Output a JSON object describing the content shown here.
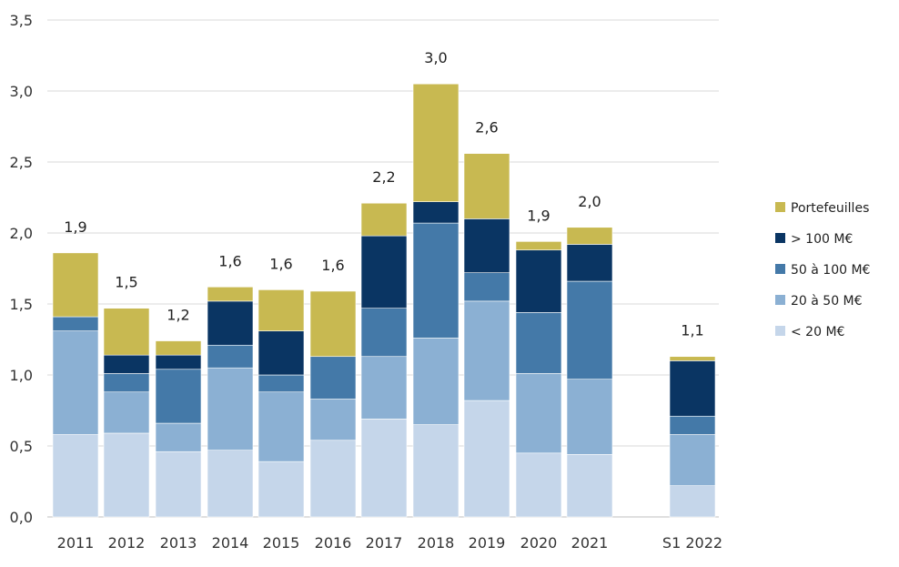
{
  "chart_data": {
    "type": "bar",
    "stacked": true,
    "categories": [
      "2011",
      "2012",
      "2013",
      "2014",
      "2015",
      "2016",
      "2017",
      "2018",
      "2019",
      "2020",
      "2021",
      "S1 2022"
    ],
    "ylim": [
      0,
      3.5
    ],
    "yticks": [
      "0,0",
      "0,5",
      "1,0",
      "1,5",
      "2,0",
      "2,5",
      "3,0",
      "3,5"
    ],
    "ytick_values": [
      0,
      0.5,
      1.0,
      1.5,
      2.0,
      2.5,
      3.0,
      3.5
    ],
    "grid": true,
    "legend_position": "right",
    "xlabel": "",
    "ylabel": "",
    "totals": [
      "1,9",
      "1,5",
      "1,2",
      "1,6",
      "1,6",
      "1,6",
      "2,2",
      "3,0",
      "2,6",
      "1,9",
      "2,0",
      "1,1"
    ],
    "series": [
      {
        "name": "< 20 M€",
        "color": "#c5d6ea",
        "values": [
          0.58,
          0.59,
          0.46,
          0.47,
          0.39,
          0.54,
          0.69,
          0.65,
          0.82,
          0.45,
          0.44,
          0.22
        ]
      },
      {
        "name": "20 à 50 M€",
        "color": "#8bb0d3",
        "values": [
          0.73,
          0.29,
          0.2,
          0.58,
          0.49,
          0.29,
          0.44,
          0.61,
          0.7,
          0.56,
          0.53,
          0.36
        ]
      },
      {
        "name": "50 à 100 M€",
        "color": "#4479a8",
        "values": [
          0.1,
          0.13,
          0.38,
          0.16,
          0.12,
          0.3,
          0.34,
          0.81,
          0.2,
          0.43,
          0.69,
          0.13
        ]
      },
      {
        "name": "> 100 M€",
        "color": "#0a3563",
        "values": [
          0.0,
          0.13,
          0.1,
          0.31,
          0.31,
          0.0,
          0.51,
          0.15,
          0.38,
          0.44,
          0.26,
          0.39
        ]
      },
      {
        "name": "Portefeuilles",
        "color": "#c8b951",
        "values": [
          0.45,
          0.33,
          0.1,
          0.1,
          0.29,
          0.46,
          0.23,
          0.83,
          0.46,
          0.06,
          0.12,
          0.03
        ]
      }
    ]
  }
}
